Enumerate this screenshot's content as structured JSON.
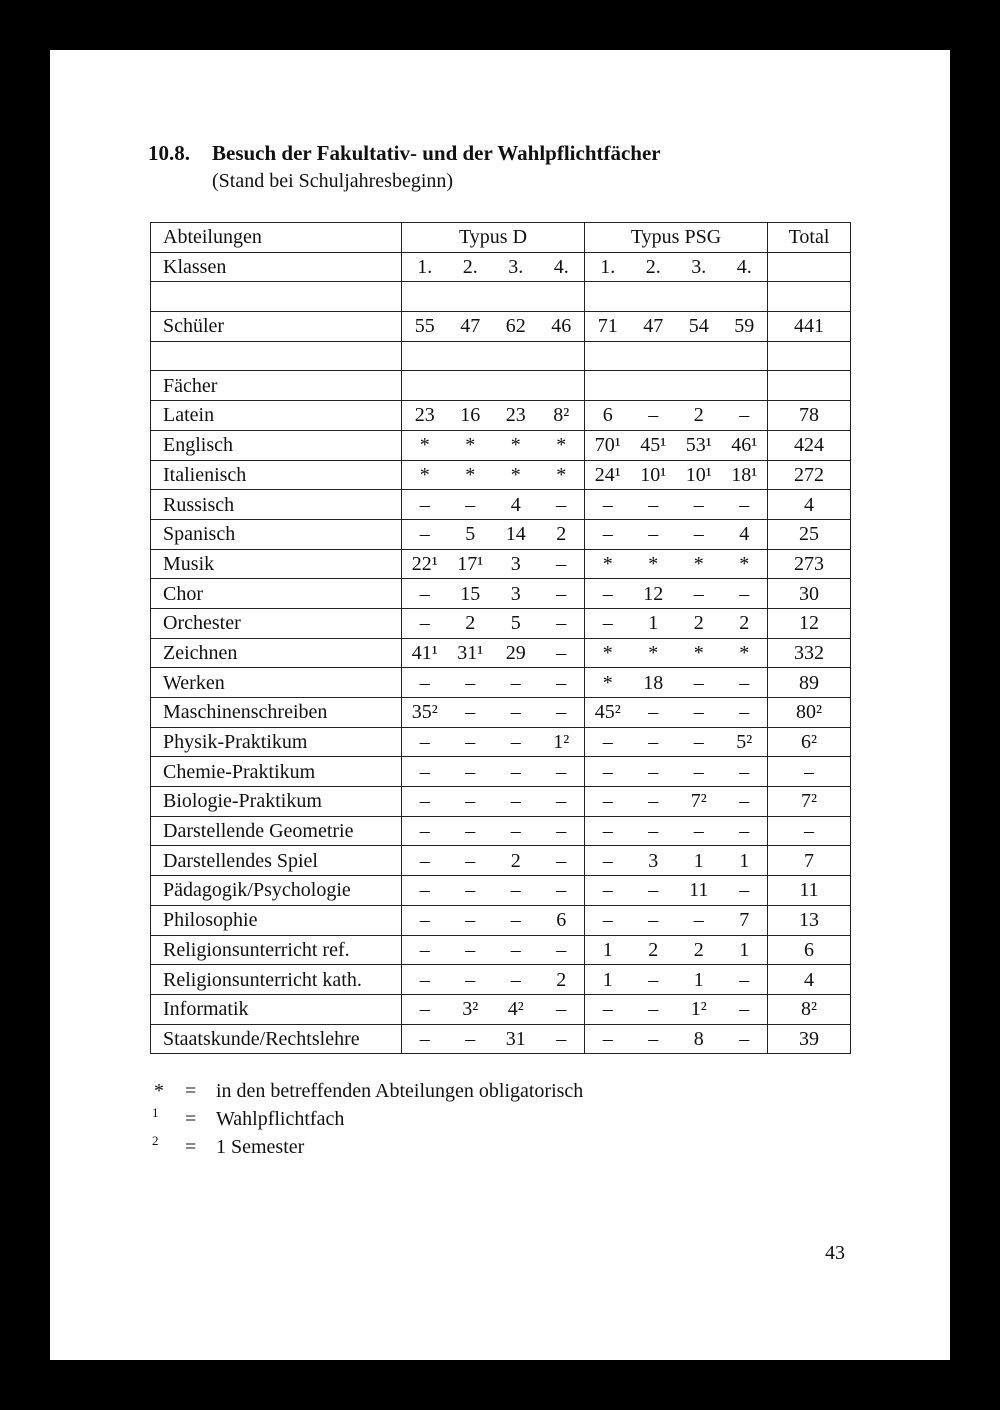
{
  "header": {
    "section": "10.8.",
    "title": "Besuch der Fakultativ- und der Wahlpflichtfächer",
    "subtitle": "(Stand bei Schuljahresbeginn)"
  },
  "table": {
    "head": {
      "label": "Abteilungen",
      "groups": [
        "Typus D",
        "Typus PSG"
      ],
      "total": "Total"
    },
    "classes": {
      "label": "Klassen",
      "values": [
        "1.",
        "2.",
        "3.",
        "4.",
        "1.",
        "2.",
        "3.",
        "4."
      ]
    },
    "students": {
      "label": "Schüler",
      "values": [
        "55",
        "47",
        "62",
        "46",
        "71",
        "47",
        "54",
        "59"
      ],
      "total": "441"
    },
    "subjects_label": "Fächer",
    "rows": [
      {
        "label": "Latein",
        "values": [
          "23",
          "16",
          "23",
          "8²",
          "6",
          "–",
          "2",
          "–"
        ],
        "total": "78"
      },
      {
        "label": "Englisch",
        "values": [
          "*",
          "*",
          "*",
          "*",
          "70¹",
          "45¹",
          "53¹",
          "46¹"
        ],
        "total": "424"
      },
      {
        "label": "Italienisch",
        "values": [
          "*",
          "*",
          "*",
          "*",
          "24¹",
          "10¹",
          "10¹",
          "18¹"
        ],
        "total": "272"
      },
      {
        "label": "Russisch",
        "values": [
          "–",
          "–",
          "4",
          "–",
          "–",
          "–",
          "–",
          "–"
        ],
        "total": "4"
      },
      {
        "label": "Spanisch",
        "values": [
          "–",
          "5",
          "14",
          "2",
          "–",
          "–",
          "–",
          "4"
        ],
        "total": "25"
      },
      {
        "label": "Musik",
        "values": [
          "22¹",
          "17¹",
          "3",
          "–",
          "*",
          "*",
          "*",
          "*"
        ],
        "total": "273"
      },
      {
        "label": "Chor",
        "values": [
          "–",
          "15",
          "3",
          "–",
          "–",
          "12",
          "–",
          "–"
        ],
        "total": "30"
      },
      {
        "label": "Orchester",
        "values": [
          "–",
          "2",
          "5",
          "–",
          "–",
          "1",
          "2",
          "2"
        ],
        "total": "12"
      },
      {
        "label": "Zeichnen",
        "values": [
          "41¹",
          "31¹",
          "29",
          "–",
          "*",
          "*",
          "*",
          "*"
        ],
        "total": "332"
      },
      {
        "label": "Werken",
        "values": [
          "–",
          "–",
          "–",
          "–",
          "*",
          "18",
          "–",
          "–"
        ],
        "total": "89"
      },
      {
        "label": "Maschinenschreiben",
        "values": [
          "35²",
          "–",
          "–",
          "–",
          "45²",
          "–",
          "–",
          "–"
        ],
        "total": "80²"
      },
      {
        "label": "Physik-Praktikum",
        "values": [
          "–",
          "–",
          "–",
          "1²",
          "–",
          "–",
          "–",
          "5²"
        ],
        "total": "6²"
      },
      {
        "label": "Chemie-Praktikum",
        "values": [
          "–",
          "–",
          "–",
          "–",
          "–",
          "–",
          "–",
          "–"
        ],
        "total": "–"
      },
      {
        "label": "Biologie-Praktikum",
        "values": [
          "–",
          "–",
          "–",
          "–",
          "–",
          "–",
          "7²",
          "–"
        ],
        "total": "7²"
      },
      {
        "label": "Darstellende Geometrie",
        "values": [
          "–",
          "–",
          "–",
          "–",
          "–",
          "–",
          "–",
          "–"
        ],
        "total": "–"
      },
      {
        "label": "Darstellendes Spiel",
        "values": [
          "–",
          "–",
          "2",
          "–",
          "–",
          "3",
          "1",
          "1"
        ],
        "total": "7"
      },
      {
        "label": "Pädagogik/Psychologie",
        "values": [
          "–",
          "–",
          "–",
          "–",
          "–",
          "–",
          "11",
          "–"
        ],
        "total": "11"
      },
      {
        "label": "Philosophie",
        "values": [
          "–",
          "–",
          "–",
          "6",
          "–",
          "–",
          "–",
          "7"
        ],
        "total": "13"
      },
      {
        "label": "Religionsunterricht ref.",
        "values": [
          "–",
          "–",
          "–",
          "–",
          "1",
          "2",
          "2",
          "1"
        ],
        "total": "6"
      },
      {
        "label": "Religionsunterricht kath.",
        "values": [
          "–",
          "–",
          "–",
          "2",
          "1",
          "–",
          "1",
          "–"
        ],
        "total": "4"
      },
      {
        "label": "Informatik",
        "values": [
          "–",
          "3²",
          "4²",
          "–",
          "–",
          "–",
          "1²",
          "–"
        ],
        "total": "8²"
      },
      {
        "label": "Staatskunde/Rechtslehre",
        "values": [
          "–",
          "–",
          "31",
          "–",
          "–",
          "–",
          "8",
          "–"
        ],
        "total": "39"
      }
    ]
  },
  "footnotes": [
    {
      "symbol": "*",
      "eq": "=",
      "text": "in den betreffenden Abteilungen obligatorisch"
    },
    {
      "symbol": "1",
      "eq": "=",
      "text": "Wahlpflichtfach"
    },
    {
      "symbol": "2",
      "eq": "=",
      "text": "1 Semester"
    }
  ],
  "page_number": "43"
}
